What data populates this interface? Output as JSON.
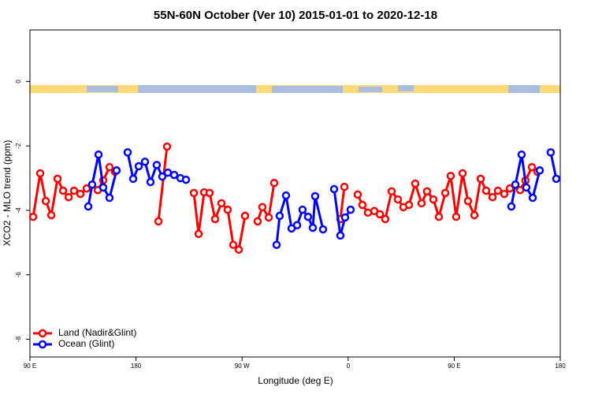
{
  "chart_data": {
    "type": "line",
    "title": "55N-60N October (Ver 10)   2015-01-01 to 2020-12-18",
    "x_label": "Longitude (deg E)",
    "y_label": "XCO2 - MLO trend (ppm)",
    "xlim": [
      90,
      540
    ],
    "ylim": [
      -8.55,
      1.6
    ],
    "xticks": [
      {
        "value": 90,
        "label": "90 E"
      },
      180,
      {
        "value": 270,
        "label": "90 W"
      },
      {
        "value": 360,
        "label": "0"
      },
      {
        "value": 450,
        "label": "90 E"
      },
      {
        "value": 540,
        "label": "180"
      }
    ],
    "yticks": [
      0,
      -2,
      -4,
      -6,
      -8
    ],
    "grid": false,
    "legend": "bottom-left",
    "series": [
      {
        "name": "Land (Nadir&Glint)",
        "color": "#ff0000",
        "x": [
          92.7,
          98.7,
          103.4,
          108.1,
          113.4,
          118.1,
          122.8,
          127.4,
          132.8,
          138.1,
          null,
          147.5,
          152.2,
          157.5,
          162.2,
          null,
          199.0,
          206.3,
          null,
          229.1,
          233.1,
          237.8,
          242.4,
          247.1,
          252.5,
          257.8,
          262.5,
          267.2,
          272.5,
          null,
          283.2,
          287.2,
          292.6,
          297.2,
          null,
          353.4,
          356.8,
          null,
          368.1,
          372.1,
          376.8,
          382.2,
          386.9,
          391.5,
          396.9,
          402.2,
          406.9,
          411.6,
          416.9,
          422.3,
          426.9,
          432.3,
          437.0,
          442.4,
          447.0,
          451.7,
          457.1,
          461.7,
          467.1,
          472.4,
          477.1,
          482.5,
          487.1,
          492.5,
          497.2,
          null,
          505.9,
          510.5,
          515.9,
          520.6
        ],
        "values": [
          -4.2,
          -2.85,
          -3.71,
          -4.15,
          -3.02,
          -3.39,
          -3.59,
          -3.39,
          -3.49,
          -3.32,
          null,
          -3.37,
          -3.07,
          -2.66,
          -2.8,
          null,
          -4.34,
          -2.02,
          null,
          -3.46,
          -4.73,
          -3.44,
          -3.46,
          -4.27,
          -3.78,
          -3.98,
          -5.07,
          -5.22,
          -4.17,
          null,
          -4.34,
          -3.9,
          -4.22,
          -3.15,
          null,
          -4.27,
          -3.27,
          null,
          -3.51,
          -3.83,
          -4.07,
          -4.02,
          -4.12,
          -4.27,
          -3.41,
          -3.66,
          -3.9,
          -3.83,
          -3.17,
          -3.78,
          -3.41,
          -3.66,
          -4.2,
          -3.46,
          -2.93,
          -4.2,
          -2.85,
          -3.71,
          -4.15,
          -3.02,
          -3.39,
          -3.59,
          -3.39,
          -3.49,
          -3.32,
          null,
          -3.37,
          -3.07,
          -2.66,
          -2.8
        ]
      },
      {
        "name": "Ocean (Glint)",
        "color": "#0000ff",
        "x": [
          139.5,
          142.8,
          148.2,
          152.2,
          157.5,
          163.5,
          null,
          172.9,
          177.6,
          182.3,
          187.6,
          192.3,
          197.6,
          202.3,
          207.0,
          212.4,
          217.7,
          222.4,
          null,
          299.3,
          301.9,
          307.3,
          312.0,
          316.7,
          321.3,
          326.0,
          330.0,
          332.0,
          338.7,
          null,
          348.1,
          353.4,
          357.4,
          362.1,
          null,
          498.5,
          501.9,
          507.2,
          511.2,
          516.6,
          522.6,
          null,
          531.9,
          536.6
        ],
        "values": [
          -3.88,
          -3.2,
          -2.27,
          -3.29,
          -3.61,
          -2.76,
          null,
          -2.2,
          -3.02,
          -2.63,
          -2.49,
          -3.12,
          -2.59,
          -2.95,
          -2.83,
          -2.9,
          -3.0,
          -3.05,
          null,
          -5.07,
          -4.17,
          -3.54,
          -4.56,
          -4.46,
          -3.98,
          -4.2,
          -4.54,
          -3.56,
          -4.59,
          null,
          -3.34,
          -4.78,
          -4.22,
          -3.98,
          null,
          -3.88,
          -3.2,
          -2.27,
          -3.29,
          -3.61,
          -2.76,
          null,
          -2.2,
          -3.02
        ]
      }
    ]
  }
}
